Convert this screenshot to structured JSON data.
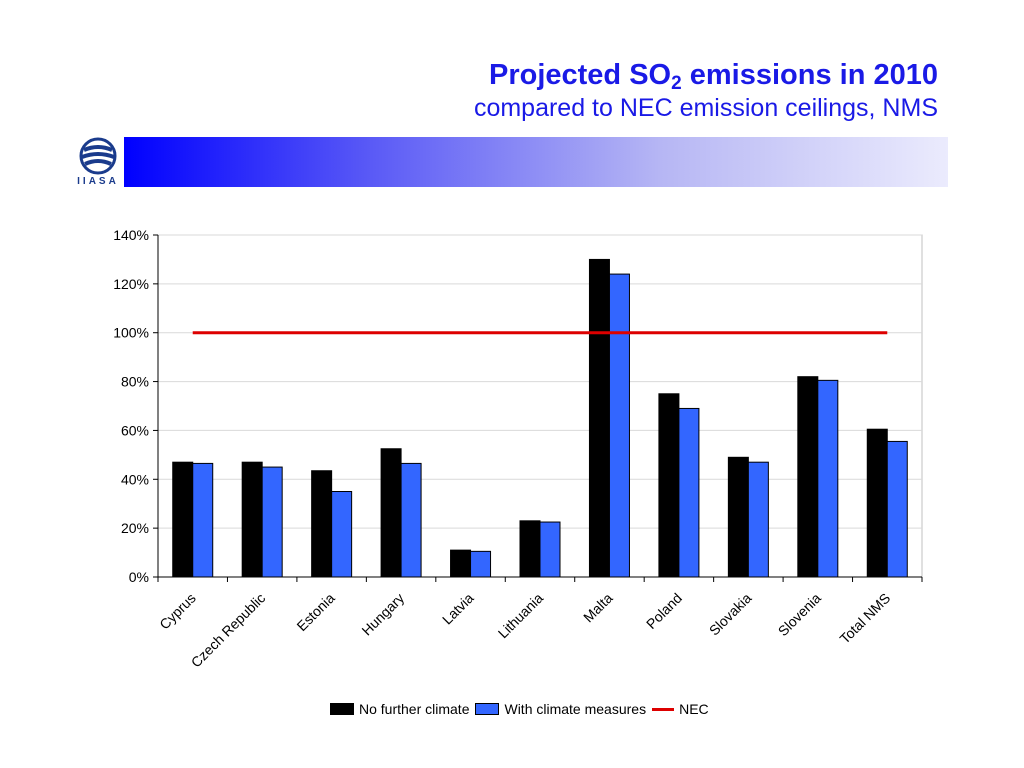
{
  "title": {
    "main_prefix": "Projected SO",
    "main_sub": "2",
    "main_suffix": " emissions in 2010",
    "subtitle": "compared to NEC emission ceilings, NMS"
  },
  "logo": {
    "text": "IIASA",
    "icon": "iiasa-globe-icon"
  },
  "colors": {
    "title": "#1a1ae6",
    "no_further_climate": "#000000",
    "with_climate_measures": "#3366ff",
    "nec": "#dd0000"
  },
  "chart_data": {
    "type": "bar",
    "categories": [
      "Cyprus",
      "Czech Republic",
      "Estonia",
      "Hungary",
      "Latvia",
      "Lithuania",
      "Malta",
      "Poland",
      "Slovakia",
      "Slovenia",
      "Total NMS"
    ],
    "series": [
      {
        "name": "No further climate",
        "values": [
          47,
          47,
          43.5,
          52.5,
          11,
          23,
          130,
          75,
          49,
          82,
          60.5
        ]
      },
      {
        "name": "With climate measures",
        "values": [
          46.5,
          45,
          35,
          46.5,
          10.5,
          22.5,
          124,
          69,
          47,
          80.5,
          55.5
        ]
      }
    ],
    "lines": [
      {
        "name": "NEC",
        "value": 100
      }
    ],
    "ylim": [
      0,
      140
    ],
    "yticks": [
      0,
      20,
      40,
      60,
      80,
      100,
      120,
      140
    ],
    "ytick_labels": [
      "0%",
      "20%",
      "40%",
      "60%",
      "80%",
      "100%",
      "120%",
      "140%"
    ],
    "grid": true,
    "legend_position": "bottom",
    "title": "",
    "xlabel": "",
    "ylabel": ""
  }
}
